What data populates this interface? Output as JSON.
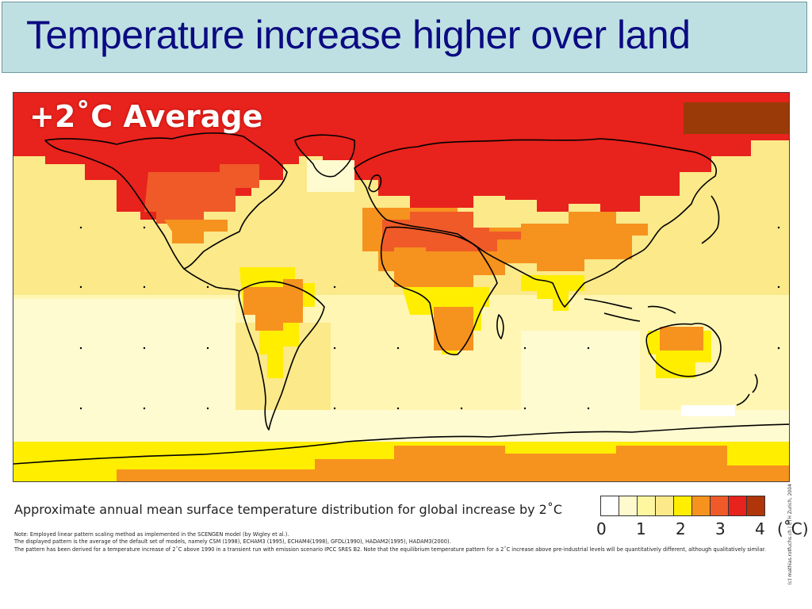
{
  "slide": {
    "title": "Temperature increase higher over land"
  },
  "map": {
    "label": "+2˚C Average",
    "credit": "(c) mathias.rotfuchs.ch | ETH Zurich, 2004",
    "colors": {
      "ocean_pale": "#fff6b4",
      "ocean_light": "#fbe98a",
      "yellow": "#ffee00",
      "orange": "#f6921e",
      "orange_red": "#ef5a28",
      "red": "#e8221c",
      "dark_brown": "#9a3a08",
      "white_patch": "#ffffff",
      "coast": "#000000"
    }
  },
  "caption": "Approximate annual mean surface temperature distribution for global increase by 2˚C",
  "notes": [
    "Note: Employed linear pattern scaling method as implemented in the SCENGEN model (by Wigley et al.).",
    "The displayed pattern is the average of the default set of models, namely CSM (1998), ECHAM3 (1995), ECHAM4(1998), GFDL(1990), HADAM2(1995), HADAM3(2000).",
    "The pattern has been derived for a temperature increase of 2˚C above 1990 in a transient run with emission scenario IPCC SRES B2. Note that the equilibrium temperature pattern for a 2˚C increase above pre-industrial levels will be quantitatively different, although qualitatively similar."
  ],
  "legend": {
    "swatch_colors": [
      "#ffffff",
      "#fffacd",
      "#fff6a0",
      "#fbe98a",
      "#ffee00",
      "#f6921e",
      "#ef5a28",
      "#e8221c",
      "#b0350a"
    ],
    "ticks": [
      "0",
      "1",
      "2",
      "3",
      "4"
    ],
    "unit": "(˚C)"
  }
}
